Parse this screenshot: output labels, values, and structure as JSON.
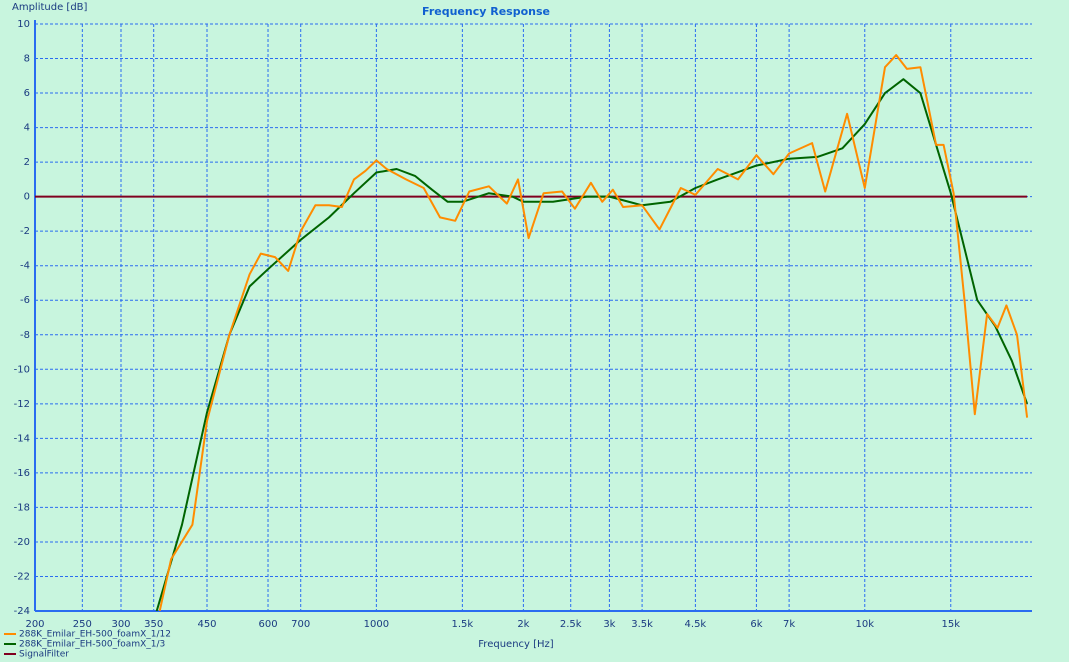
{
  "chart_data": {
    "type": "line",
    "title": "Frequency Response",
    "y_label": "Amplitude [dB]",
    "x_label": "Frequency [Hz]",
    "xscale": "log",
    "grid": true,
    "legend": "bottom-left",
    "xlim": [
      200,
      22000
    ],
    "ylim": [
      -24,
      10
    ],
    "xticks": [
      200,
      250,
      300,
      350,
      450,
      600,
      700,
      1000,
      {
        "value": 1500,
        "label": "1.5k"
      },
      {
        "value": 2000,
        "label": "2k"
      },
      {
        "value": 2500,
        "label": "2.5k"
      },
      {
        "value": 3000,
        "label": "3k"
      },
      {
        "value": 3500,
        "label": "3.5k"
      },
      {
        "value": 4500,
        "label": "4.5k"
      },
      {
        "value": 6000,
        "label": "6k"
      },
      {
        "value": 7000,
        "label": "7k"
      },
      {
        "value": 10000,
        "label": "10k"
      },
      {
        "value": 15000,
        "label": "15k"
      }
    ],
    "yticks": [
      10,
      8,
      6,
      4,
      2,
      0,
      -2,
      -4,
      -6,
      -8,
      -10,
      -12,
      -14,
      -16,
      -18,
      -20,
      -22,
      -24
    ],
    "series": [
      {
        "name": "288K_Emilar_EH-500_foamX_1/12",
        "color": "#ff8c00",
        "x": [
          360,
          380,
          420,
          450,
          500,
          550,
          580,
          620,
          660,
          700,
          750,
          800,
          850,
          900,
          950,
          1000,
          1050,
          1150,
          1250,
          1350,
          1450,
          1550,
          1700,
          1850,
          1950,
          2050,
          2200,
          2400,
          2550,
          2750,
          2900,
          3050,
          3200,
          3500,
          3800,
          4200,
          4500,
          5000,
          5500,
          6000,
          6500,
          7000,
          7800,
          8300,
          9200,
          10000,
          11000,
          11600,
          12200,
          13000,
          14000,
          14500,
          15200,
          16000,
          16800,
          17800,
          18700,
          19500,
          20500,
          21500
        ],
        "values": [
          -24,
          -21,
          -19,
          -13,
          -8,
          -4.5,
          -3.3,
          -3.5,
          -4.3,
          -2,
          -0.5,
          -0.5,
          -0.6,
          1,
          1.5,
          2.1,
          1.6,
          1,
          0.5,
          -1.2,
          -1.4,
          0.3,
          0.6,
          -0.4,
          1,
          -2.4,
          0.2,
          0.3,
          -0.7,
          0.8,
          -0.3,
          0.4,
          -0.6,
          -0.5,
          -1.9,
          0.5,
          0.1,
          1.6,
          1,
          2.4,
          1.3,
          2.5,
          3.1,
          0.3,
          4.8,
          0.5,
          7.5,
          8.2,
          7.4,
          7.5,
          3,
          3,
          0.2,
          -6,
          -12.6,
          -6.8,
          -7.6,
          -6.3,
          -8,
          -12.8
        ]
      },
      {
        "name": "288K_Emilar_EH-500_foamX_1/3",
        "color": "#006400",
        "x": [
          355,
          400,
          450,
          500,
          550,
          600,
          700,
          800,
          900,
          1000,
          1100,
          1200,
          1300,
          1400,
          1500,
          1700,
          1900,
          2000,
          2300,
          2700,
          3000,
          3500,
          4000,
          4500,
          5000,
          6000,
          7000,
          8000,
          9000,
          10000,
          11000,
          12000,
          13000,
          14000,
          15000,
          16000,
          17000,
          18500,
          20000,
          21500
        ],
        "values": [
          -24,
          -19,
          -12.5,
          -8,
          -5.2,
          -4.2,
          -2.5,
          -1.2,
          0.2,
          1.4,
          1.6,
          1.2,
          0.4,
          -0.3,
          -0.3,
          0.2,
          0,
          -0.3,
          -0.3,
          0,
          0,
          -0.5,
          -0.3,
          0.5,
          1,
          1.8,
          2.2,
          2.3,
          2.8,
          4.2,
          6,
          6.8,
          6,
          3,
          0.2,
          -3,
          -6,
          -7.5,
          -9.5,
          -12
        ]
      },
      {
        "name": "SignalFilter",
        "color": "#800020",
        "x": [
          200,
          21500
        ],
        "values": [
          0,
          0
        ]
      }
    ]
  }
}
